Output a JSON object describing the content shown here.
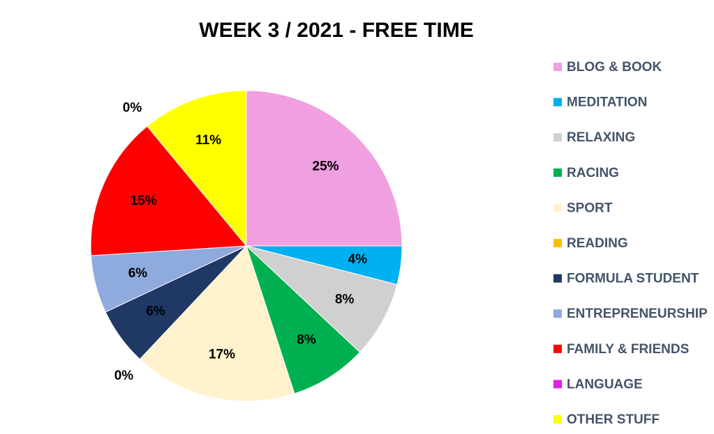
{
  "chart_data": {
    "type": "pie",
    "title": "WEEK 3 / 2021 - FREE TIME",
    "categories": [
      "BLOG & BOOK",
      "MEDITATION",
      "RELAXING",
      "RACING",
      "SPORT",
      "READING",
      "FORMULA STUDENT",
      "ENTREPRENEURSHIP",
      "FAMILY & FRIENDS",
      "LANGUAGE",
      "OTHER STUFF"
    ],
    "values": [
      25,
      4,
      8,
      8,
      17,
      0,
      6,
      6,
      15,
      0,
      11
    ],
    "value_labels": [
      "25%",
      "4%",
      "8%",
      "8%",
      "17%",
      "0%",
      "6%",
      "6%",
      "15%",
      "0%",
      "11%"
    ],
    "colors": [
      "#f09fe0",
      "#00b0f0",
      "#d0d0d0",
      "#00b050",
      "#fff2cc",
      "#ffc000",
      "#1f3864",
      "#8faadc",
      "#ff0000",
      "#e020e0",
      "#ffff00"
    ],
    "legend": "right"
  }
}
